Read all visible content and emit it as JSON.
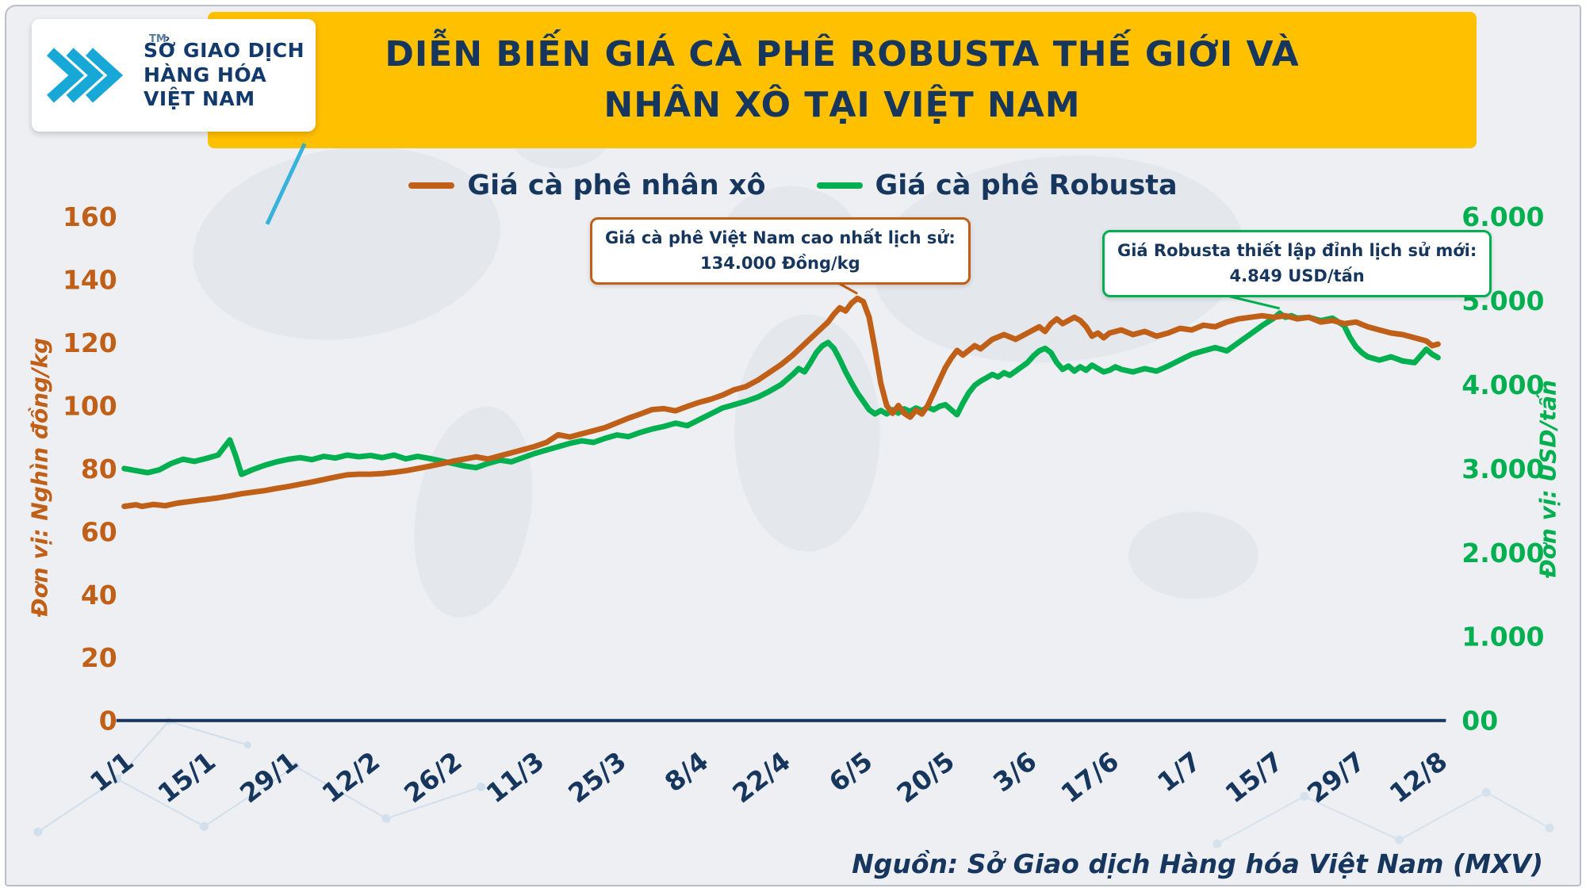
{
  "logo": {
    "line1": "SỞ GIAO DỊCH",
    "line2": "HÀNG HÓA",
    "line3": "VIỆT NAM",
    "tm": "TM"
  },
  "banner": {
    "title_line1": "DIỄN BIẾN GIÁ CÀ PHÊ ROBUSTA THẾ GIỚI VÀ",
    "title_line2": "NHÂN XÔ TẠI VIỆT NAM"
  },
  "annotations": [
    {
      "line1": "Giá cà phê Việt Nam cao nhất lịch sử:",
      "line2": "134.000 Đồng/kg",
      "color": "#c05f17",
      "series": "Giá cà phê nhân xô",
      "axis": "left",
      "anchor_day": 125,
      "anchor_value": 134
    },
    {
      "line1": "Giá Robusta thiết lập đỉnh lịch sử mới:",
      "line2": "4.849 USD/tấn",
      "color": "#00b050",
      "series": "Giá cà phê Robusta",
      "axis": "right",
      "anchor_day": 197,
      "anchor_value": 4849
    }
  ],
  "source": "Nguồn: Sở Giao dịch Hàng hóa Việt Nam (MXV)",
  "colors": {
    "orange": "#c05f17",
    "green": "#00b050",
    "navy": "#17365d",
    "banner_yellow": "#ffc000",
    "background": "#edeff2",
    "logo_teal": "#18a8d8"
  },
  "chart_data": {
    "type": "line",
    "title": "Diễn biến giá cà phê Robusta thế giới và nhân xô tại Việt Nam",
    "grid": false,
    "legend_position": "top",
    "x_axis": {
      "tick_labels": [
        "1/1",
        "15/1",
        "29/1",
        "12/2",
        "26/2",
        "11/3",
        "25/3",
        "8/4",
        "22/4",
        "6/5",
        "20/5",
        "3/6",
        "17/6",
        "1/7",
        "15/7",
        "29/7",
        "12/8"
      ],
      "tick_days": [
        0,
        14,
        28,
        42,
        56,
        70,
        84,
        98,
        112,
        126,
        140,
        154,
        168,
        182,
        196,
        210,
        224
      ],
      "x_max": 224
    },
    "y_left": {
      "label": "Đơn vị: Nghìn đồng/kg",
      "range": [
        0,
        160
      ],
      "tick_values": [
        0,
        20,
        40,
        60,
        80,
        100,
        120,
        140,
        160
      ],
      "tick_labels": [
        "0",
        "20",
        "40",
        "60",
        "80",
        "100",
        "120",
        "140",
        "160"
      ],
      "color": "#c05f17"
    },
    "y_right": {
      "label": "Đơn vị: USD/tấn",
      "range": [
        0,
        6000
      ],
      "tick_values": [
        0,
        1000,
        2000,
        3000,
        4000,
        5000,
        6000
      ],
      "tick_labels": [
        "00",
        "1.000",
        "2.000",
        "3.000",
        "4.000",
        "5.000",
        "6.000"
      ],
      "color": "#00b050"
    },
    "series": [
      {
        "name": "Giá cà phê nhân xô",
        "axis": "left",
        "unit": "nghìn đồng/kg",
        "color": "#c05f17",
        "points": [
          [
            0,
            68
          ],
          [
            2,
            68.5
          ],
          [
            3,
            68
          ],
          [
            5,
            68.6
          ],
          [
            7,
            68.2
          ],
          [
            9,
            69
          ],
          [
            11,
            69.5
          ],
          [
            13,
            70
          ],
          [
            14,
            70.2
          ],
          [
            16,
            70.7
          ],
          [
            18,
            71.3
          ],
          [
            20,
            72
          ],
          [
            22,
            72.5
          ],
          [
            24,
            73
          ],
          [
            26,
            73.7
          ],
          [
            28,
            74.3
          ],
          [
            30,
            75
          ],
          [
            32,
            75.7
          ],
          [
            34,
            76.5
          ],
          [
            36,
            77.3
          ],
          [
            38,
            78
          ],
          [
            40,
            78.2
          ],
          [
            42,
            78.2
          ],
          [
            44,
            78.4
          ],
          [
            46,
            78.8
          ],
          [
            48,
            79.3
          ],
          [
            50,
            80
          ],
          [
            52,
            80.7
          ],
          [
            54,
            81.5
          ],
          [
            56,
            82.3
          ],
          [
            58,
            83
          ],
          [
            60,
            83.7
          ],
          [
            62,
            83
          ],
          [
            64,
            84
          ],
          [
            66,
            85
          ],
          [
            68,
            86
          ],
          [
            70,
            87
          ],
          [
            72,
            88.3
          ],
          [
            74,
            90.7
          ],
          [
            76,
            90
          ],
          [
            78,
            91
          ],
          [
            80,
            92
          ],
          [
            82,
            93
          ],
          [
            84,
            94.5
          ],
          [
            86,
            96
          ],
          [
            88,
            97.3
          ],
          [
            90,
            98.7
          ],
          [
            92,
            99
          ],
          [
            94,
            98.3
          ],
          [
            96,
            99.7
          ],
          [
            98,
            101
          ],
          [
            100,
            102
          ],
          [
            102,
            103.3
          ],
          [
            104,
            105
          ],
          [
            106,
            106
          ],
          [
            108,
            108
          ],
          [
            110,
            110.5
          ],
          [
            112,
            113
          ],
          [
            114,
            116
          ],
          [
            116,
            119.5
          ],
          [
            118,
            123
          ],
          [
            120,
            126.5
          ],
          [
            121,
            129
          ],
          [
            122,
            131
          ],
          [
            123,
            130
          ],
          [
            124,
            132.5
          ],
          [
            125,
            134
          ],
          [
            126,
            133
          ],
          [
            127,
            128
          ],
          [
            128,
            118
          ],
          [
            129,
            107
          ],
          [
            130,
            100
          ],
          [
            131,
            97.5
          ],
          [
            132,
            100
          ],
          [
            133,
            97.5
          ],
          [
            134,
            96.3
          ],
          [
            135,
            98.5
          ],
          [
            136,
            97.3
          ],
          [
            137,
            100
          ],
          [
            138,
            104
          ],
          [
            139,
            108
          ],
          [
            140,
            112
          ],
          [
            141,
            115
          ],
          [
            142,
            117.5
          ],
          [
            143,
            116
          ],
          [
            144,
            117.5
          ],
          [
            145,
            119
          ],
          [
            146,
            118
          ],
          [
            147,
            119.5
          ],
          [
            148,
            121
          ],
          [
            150,
            122.5
          ],
          [
            152,
            121
          ],
          [
            154,
            123
          ],
          [
            156,
            125
          ],
          [
            157,
            123.5
          ],
          [
            158,
            126
          ],
          [
            159,
            127.5
          ],
          [
            160,
            126
          ],
          [
            161,
            127
          ],
          [
            162,
            128
          ],
          [
            163,
            127
          ],
          [
            164,
            125
          ],
          [
            165,
            122
          ],
          [
            166,
            123
          ],
          [
            167,
            121.5
          ],
          [
            168,
            123
          ],
          [
            170,
            124
          ],
          [
            172,
            122.5
          ],
          [
            174,
            123.5
          ],
          [
            176,
            122
          ],
          [
            178,
            123
          ],
          [
            180,
            124.5
          ],
          [
            182,
            124
          ],
          [
            184,
            125.5
          ],
          [
            186,
            125
          ],
          [
            188,
            126.5
          ],
          [
            190,
            127.5
          ],
          [
            192,
            128
          ],
          [
            194,
            128.5
          ],
          [
            196,
            128
          ],
          [
            198,
            128.5
          ],
          [
            200,
            127.5
          ],
          [
            202,
            128
          ],
          [
            204,
            126.5
          ],
          [
            206,
            127
          ],
          [
            208,
            126
          ],
          [
            210,
            126.5
          ],
          [
            212,
            125
          ],
          [
            214,
            124
          ],
          [
            216,
            123
          ],
          [
            218,
            122.5
          ],
          [
            220,
            121.5
          ],
          [
            222,
            120.5
          ],
          [
            223,
            119
          ],
          [
            224,
            119.5
          ]
        ]
      },
      {
        "name": "Giá cà phê Robusta",
        "axis": "right",
        "unit": "USD/tấn",
        "color": "#00b050",
        "points": [
          [
            0,
            3000
          ],
          [
            2,
            2975
          ],
          [
            4,
            2950
          ],
          [
            6,
            2985
          ],
          [
            8,
            3060
          ],
          [
            10,
            3110
          ],
          [
            12,
            3085
          ],
          [
            14,
            3120
          ],
          [
            16,
            3160
          ],
          [
            17,
            3250
          ],
          [
            18,
            3340
          ],
          [
            19,
            3150
          ],
          [
            20,
            2930
          ],
          [
            22,
            2990
          ],
          [
            24,
            3040
          ],
          [
            26,
            3080
          ],
          [
            28,
            3110
          ],
          [
            30,
            3130
          ],
          [
            32,
            3105
          ],
          [
            34,
            3145
          ],
          [
            36,
            3125
          ],
          [
            38,
            3160
          ],
          [
            40,
            3140
          ],
          [
            42,
            3155
          ],
          [
            44,
            3130
          ],
          [
            46,
            3160
          ],
          [
            48,
            3115
          ],
          [
            50,
            3145
          ],
          [
            52,
            3120
          ],
          [
            54,
            3090
          ],
          [
            56,
            3060
          ],
          [
            58,
            3030
          ],
          [
            60,
            3010
          ],
          [
            62,
            3060
          ],
          [
            64,
            3100
          ],
          [
            66,
            3080
          ],
          [
            68,
            3130
          ],
          [
            70,
            3180
          ],
          [
            72,
            3220
          ],
          [
            74,
            3260
          ],
          [
            76,
            3300
          ],
          [
            78,
            3330
          ],
          [
            80,
            3310
          ],
          [
            82,
            3360
          ],
          [
            84,
            3400
          ],
          [
            86,
            3380
          ],
          [
            88,
            3430
          ],
          [
            90,
            3470
          ],
          [
            92,
            3500
          ],
          [
            94,
            3540
          ],
          [
            96,
            3510
          ],
          [
            98,
            3580
          ],
          [
            100,
            3650
          ],
          [
            102,
            3720
          ],
          [
            104,
            3760
          ],
          [
            106,
            3800
          ],
          [
            108,
            3850
          ],
          [
            110,
            3920
          ],
          [
            112,
            4000
          ],
          [
            113,
            4060
          ],
          [
            114,
            4120
          ],
          [
            115,
            4190
          ],
          [
            116,
            4150
          ],
          [
            117,
            4260
          ],
          [
            118,
            4380
          ],
          [
            119,
            4460
          ],
          [
            120,
            4500
          ],
          [
            121,
            4430
          ],
          [
            122,
            4300
          ],
          [
            123,
            4150
          ],
          [
            124,
            4020
          ],
          [
            125,
            3900
          ],
          [
            126,
            3800
          ],
          [
            127,
            3700
          ],
          [
            128,
            3650
          ],
          [
            129,
            3690
          ],
          [
            130,
            3650
          ],
          [
            131,
            3700
          ],
          [
            132,
            3660
          ],
          [
            133,
            3710
          ],
          [
            134,
            3680
          ],
          [
            135,
            3720
          ],
          [
            136,
            3690
          ],
          [
            137,
            3730
          ],
          [
            138,
            3700
          ],
          [
            139,
            3740
          ],
          [
            140,
            3760
          ],
          [
            141,
            3700
          ],
          [
            142,
            3640
          ],
          [
            143,
            3780
          ],
          [
            144,
            3900
          ],
          [
            145,
            3990
          ],
          [
            146,
            4040
          ],
          [
            147,
            4080
          ],
          [
            148,
            4120
          ],
          [
            149,
            4090
          ],
          [
            150,
            4140
          ],
          [
            151,
            4110
          ],
          [
            152,
            4160
          ],
          [
            153,
            4210
          ],
          [
            154,
            4260
          ],
          [
            155,
            4340
          ],
          [
            156,
            4400
          ],
          [
            157,
            4430
          ],
          [
            158,
            4380
          ],
          [
            159,
            4260
          ],
          [
            160,
            4180
          ],
          [
            161,
            4220
          ],
          [
            162,
            4160
          ],
          [
            163,
            4210
          ],
          [
            164,
            4170
          ],
          [
            165,
            4230
          ],
          [
            166,
            4190
          ],
          [
            167,
            4150
          ],
          [
            168,
            4170
          ],
          [
            169,
            4210
          ],
          [
            170,
            4180
          ],
          [
            172,
            4150
          ],
          [
            174,
            4190
          ],
          [
            176,
            4160
          ],
          [
            178,
            4220
          ],
          [
            180,
            4290
          ],
          [
            182,
            4360
          ],
          [
            184,
            4400
          ],
          [
            186,
            4440
          ],
          [
            188,
            4400
          ],
          [
            190,
            4500
          ],
          [
            192,
            4600
          ],
          [
            194,
            4700
          ],
          [
            196,
            4790
          ],
          [
            197,
            4849
          ],
          [
            198,
            4800
          ],
          [
            199,
            4820
          ],
          [
            200,
            4790
          ],
          [
            202,
            4800
          ],
          [
            204,
            4760
          ],
          [
            206,
            4790
          ],
          [
            208,
            4700
          ],
          [
            209,
            4560
          ],
          [
            210,
            4450
          ],
          [
            211,
            4380
          ],
          [
            212,
            4330
          ],
          [
            214,
            4290
          ],
          [
            216,
            4330
          ],
          [
            218,
            4280
          ],
          [
            220,
            4260
          ],
          [
            222,
            4420
          ],
          [
            223,
            4360
          ],
          [
            224,
            4320
          ]
        ]
      }
    ]
  }
}
